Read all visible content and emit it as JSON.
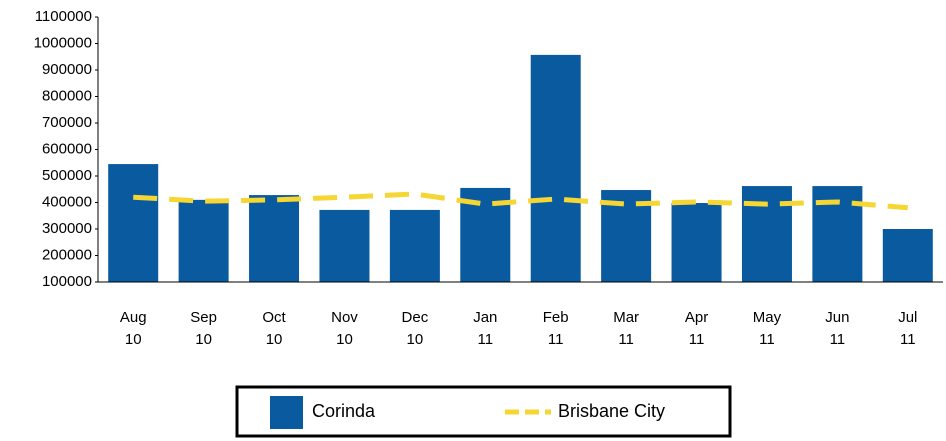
{
  "chart_data": {
    "type": "bar",
    "categories": [
      "Aug 10",
      "Sep 10",
      "Oct 10",
      "Nov 10",
      "Dec 10",
      "Jan 11",
      "Feb 11",
      "Mar 11",
      "Apr 11",
      "May 11",
      "Jun 11",
      "Jul 11"
    ],
    "series": [
      {
        "name": "Corinda",
        "type": "bar",
        "color": "#0a5aa0",
        "values": [
          545000,
          410000,
          428000,
          372000,
          372000,
          455000,
          957000,
          447000,
          398000,
          462000,
          462000,
          300000
        ]
      },
      {
        "name": "Brisbane City",
        "type": "line",
        "color": "#f5d633",
        "values": [
          420000,
          405000,
          410000,
          420000,
          432000,
          394000,
          413000,
          394000,
          402000,
          394000,
          402000,
          380000
        ]
      }
    ],
    "ylim": [
      100000,
      1100000
    ],
    "yticks": [
      100000,
      200000,
      300000,
      400000,
      500000,
      600000,
      700000,
      800000,
      900000,
      1000000,
      1100000
    ],
    "grid": false,
    "legend": "bottom"
  }
}
